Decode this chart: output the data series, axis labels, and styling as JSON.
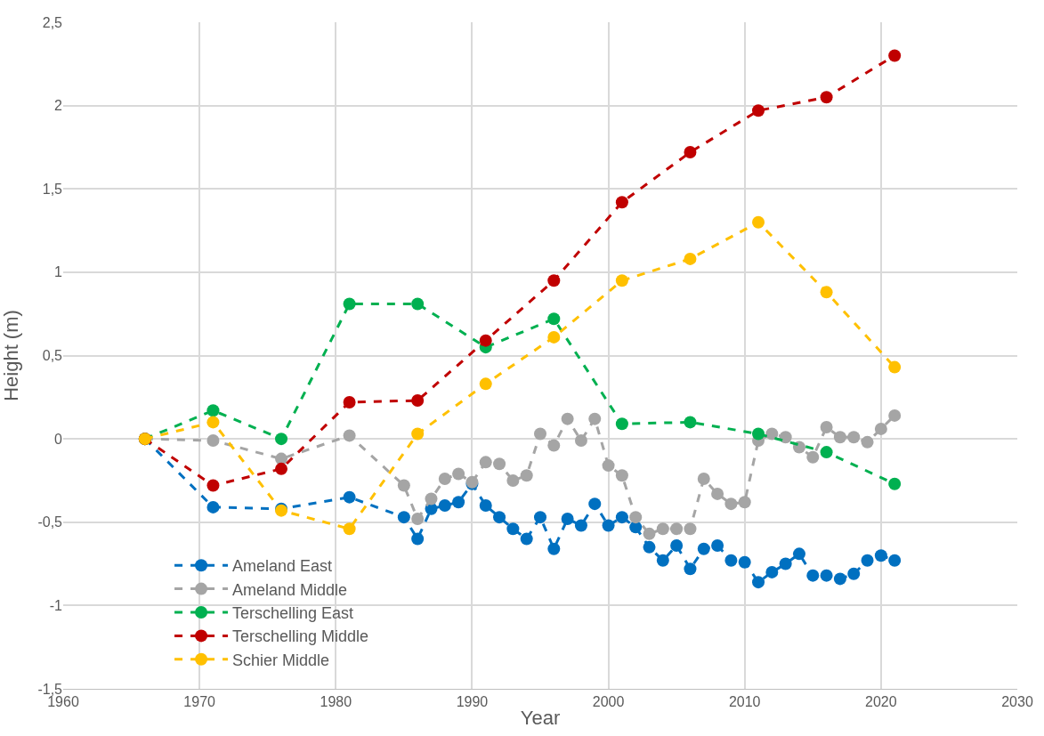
{
  "chart_data": {
    "type": "line",
    "xlabel": "Year",
    "ylabel": "Height (m)",
    "xlim": [
      1960,
      2030
    ],
    "xticks": [
      1960,
      1970,
      1980,
      1990,
      2000,
      2010,
      2020,
      2030
    ],
    "ylim": [
      -1.5,
      2.5
    ],
    "yticks": [
      {
        "value": -1.5,
        "label": "-1,5"
      },
      -1,
      {
        "value": -0.5,
        "label": "-0,5"
      },
      0,
      {
        "value": 0.5,
        "label": "0,5"
      },
      1,
      {
        "value": 1.5,
        "label": "1,5"
      },
      2,
      {
        "value": 2.5,
        "label": "2,5"
      }
    ],
    "grid": true,
    "legend": "bottom",
    "marker": "circle",
    "line_style": "dashed",
    "series": [
      {
        "name": "Ameland East",
        "color": "#0070c0",
        "x": [
          1966,
          1971,
          1976,
          1981,
          1985,
          1986,
          1987,
          1988,
          1989,
          1990,
          1991,
          1992,
          1993,
          1994,
          1995,
          1996,
          1997,
          1998,
          1999,
          2000,
          2001,
          2002,
          2003,
          2004,
          2005,
          2006,
          2007,
          2008,
          2009,
          2010,
          2011,
          2012,
          2013,
          2014,
          2015,
          2016,
          2017,
          2018,
          2019,
          2020,
          2021
        ],
        "values": [
          0,
          -0.41,
          -0.42,
          -0.35,
          -0.47,
          -0.6,
          -0.42,
          -0.4,
          -0.38,
          -0.27,
          -0.4,
          -0.47,
          -0.54,
          -0.6,
          -0.47,
          -0.66,
          -0.48,
          -0.52,
          -0.39,
          -0.52,
          -0.47,
          -0.53,
          -0.65,
          -0.73,
          -0.64,
          -0.78,
          -0.66,
          -0.64,
          -0.73,
          -0.74,
          -0.86,
          -0.8,
          -0.75,
          -0.69,
          -0.82,
          -0.82,
          -0.84,
          -0.81,
          -0.73,
          -0.7,
          -0.73
        ]
      },
      {
        "name": "Ameland Middle",
        "color": "#a5a5a5",
        "x": [
          1966,
          1971,
          1976,
          1981,
          1985,
          1986,
          1987,
          1988,
          1989,
          1990,
          1991,
          1992,
          1993,
          1994,
          1995,
          1996,
          1997,
          1998,
          1999,
          2000,
          2001,
          2002,
          2003,
          2004,
          2005,
          2006,
          2007,
          2008,
          2009,
          2010,
          2011,
          2012,
          2013,
          2014,
          2015,
          2016,
          2017,
          2018,
          2019,
          2020,
          2021
        ],
        "values": [
          0,
          -0.01,
          -0.12,
          0.02,
          -0.28,
          -0.48,
          -0.36,
          -0.24,
          -0.21,
          -0.26,
          -0.14,
          -0.15,
          -0.25,
          -0.22,
          0.03,
          -0.04,
          0.12,
          -0.01,
          0.12,
          -0.16,
          -0.22,
          -0.47,
          -0.57,
          -0.54,
          -0.54,
          -0.54,
          -0.24,
          -0.33,
          -0.39,
          -0.38,
          -0.01,
          0.03,
          0.01,
          -0.05,
          -0.11,
          0.07,
          0.01,
          0.01,
          -0.02,
          0.06,
          0.14
        ]
      },
      {
        "name": "Terschelling East",
        "color": "#00b050",
        "x": [
          1966,
          1971,
          1976,
          1981,
          1986,
          1991,
          1996,
          2001,
          2006,
          2011,
          2016,
          2021
        ],
        "values": [
          0,
          0.17,
          0,
          0.81,
          0.81,
          0.55,
          0.72,
          0.09,
          0.1,
          0.03,
          -0.08,
          -0.27
        ]
      },
      {
        "name": "Terschelling Middle",
        "color": "#c00000",
        "x": [
          1966,
          1971,
          1976,
          1981,
          1986,
          1991,
          1996,
          2001,
          2006,
          2011,
          2016,
          2021
        ],
        "values": [
          0,
          -0.28,
          -0.18,
          0.22,
          0.23,
          0.59,
          0.95,
          1.42,
          1.72,
          1.97,
          2.05,
          2.3
        ]
      },
      {
        "name": "Schier Middle",
        "color": "#ffc000",
        "x": [
          1966,
          1971,
          1976,
          1981,
          1986,
          1991,
          1996,
          2001,
          2006,
          2011,
          2016,
          2021
        ],
        "values": [
          0,
          0.1,
          -0.43,
          -0.54,
          0.03,
          0.33,
          0.61,
          0.95,
          1.08,
          1.3,
          0.88,
          0.43
        ]
      }
    ]
  }
}
